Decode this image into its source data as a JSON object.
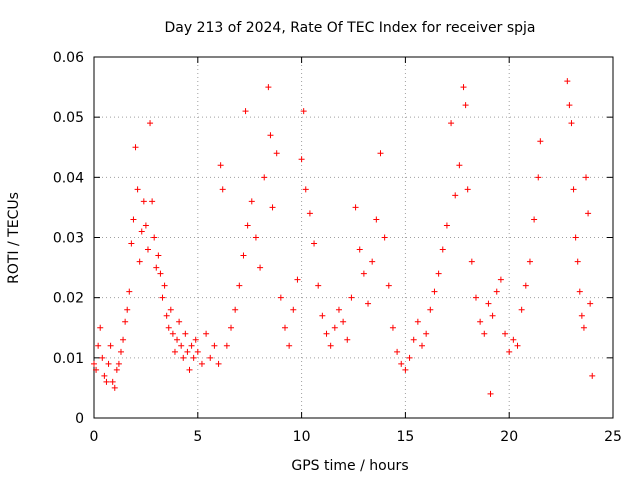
{
  "chart_data": {
    "type": "scatter",
    "title": "Day 213 of 2024, Rate Of TEC Index for receiver spja",
    "xlabel": "GPS time / hours",
    "ylabel": "ROTI / TECUs",
    "xlim": [
      0,
      25
    ],
    "ylim": [
      0,
      0.06
    ],
    "xticks": [
      0,
      5,
      10,
      15,
      20,
      25
    ],
    "yticks": [
      0,
      0.01,
      0.02,
      0.03,
      0.04,
      0.05,
      0.06
    ],
    "ytick_labels": [
      "0",
      "0.01",
      "0.02",
      "0.03",
      "0.04",
      "0.05",
      "0.06"
    ],
    "grid": true,
    "marker": "+",
    "color": "#ff0000",
    "series": [
      {
        "name": "spja",
        "points": [
          [
            0.0,
            0.009
          ],
          [
            0.1,
            0.008
          ],
          [
            0.2,
            0.012
          ],
          [
            0.3,
            0.015
          ],
          [
            0.4,
            0.01
          ],
          [
            0.5,
            0.007
          ],
          [
            0.6,
            0.006
          ],
          [
            0.7,
            0.009
          ],
          [
            0.8,
            0.012
          ],
          [
            0.9,
            0.006
          ],
          [
            1.0,
            0.005
          ],
          [
            1.1,
            0.008
          ],
          [
            1.2,
            0.009
          ],
          [
            1.3,
            0.011
          ],
          [
            1.4,
            0.013
          ],
          [
            1.5,
            0.016
          ],
          [
            1.6,
            0.018
          ],
          [
            1.7,
            0.021
          ],
          [
            1.8,
            0.029
          ],
          [
            1.9,
            0.033
          ],
          [
            2.0,
            0.045
          ],
          [
            2.1,
            0.038
          ],
          [
            2.2,
            0.026
          ],
          [
            2.3,
            0.031
          ],
          [
            2.4,
            0.036
          ],
          [
            2.5,
            0.032
          ],
          [
            2.6,
            0.028
          ],
          [
            2.7,
            0.049
          ],
          [
            2.8,
            0.036
          ],
          [
            2.9,
            0.03
          ],
          [
            3.0,
            0.025
          ],
          [
            3.1,
            0.027
          ],
          [
            3.2,
            0.024
          ],
          [
            3.3,
            0.02
          ],
          [
            3.4,
            0.022
          ],
          [
            3.5,
            0.017
          ],
          [
            3.6,
            0.015
          ],
          [
            3.7,
            0.018
          ],
          [
            3.8,
            0.014
          ],
          [
            3.9,
            0.011
          ],
          [
            4.0,
            0.013
          ],
          [
            4.1,
            0.016
          ],
          [
            4.2,
            0.012
          ],
          [
            4.3,
            0.01
          ],
          [
            4.4,
            0.014
          ],
          [
            4.5,
            0.011
          ],
          [
            4.6,
            0.008
          ],
          [
            4.7,
            0.012
          ],
          [
            4.8,
            0.01
          ],
          [
            4.9,
            0.013
          ],
          [
            5.0,
            0.011
          ],
          [
            5.2,
            0.009
          ],
          [
            5.4,
            0.014
          ],
          [
            5.6,
            0.01
          ],
          [
            5.8,
            0.012
          ],
          [
            6.0,
            0.009
          ],
          [
            6.1,
            0.042
          ],
          [
            6.2,
            0.038
          ],
          [
            6.4,
            0.012
          ],
          [
            6.6,
            0.015
          ],
          [
            6.8,
            0.018
          ],
          [
            7.0,
            0.022
          ],
          [
            7.2,
            0.027
          ],
          [
            7.3,
            0.051
          ],
          [
            7.4,
            0.032
          ],
          [
            7.6,
            0.036
          ],
          [
            7.8,
            0.03
          ],
          [
            8.0,
            0.025
          ],
          [
            8.2,
            0.04
          ],
          [
            8.4,
            0.055
          ],
          [
            8.5,
            0.047
          ],
          [
            8.6,
            0.035
          ],
          [
            8.8,
            0.044
          ],
          [
            9.0,
            0.02
          ],
          [
            9.2,
            0.015
          ],
          [
            9.4,
            0.012
          ],
          [
            9.6,
            0.018
          ],
          [
            9.8,
            0.023
          ],
          [
            10.0,
            0.043
          ],
          [
            10.1,
            0.051
          ],
          [
            10.2,
            0.038
          ],
          [
            10.4,
            0.034
          ],
          [
            10.6,
            0.029
          ],
          [
            10.8,
            0.022
          ],
          [
            11.0,
            0.017
          ],
          [
            11.2,
            0.014
          ],
          [
            11.4,
            0.012
          ],
          [
            11.6,
            0.015
          ],
          [
            11.8,
            0.018
          ],
          [
            12.0,
            0.016
          ],
          [
            12.2,
            0.013
          ],
          [
            12.4,
            0.02
          ],
          [
            12.6,
            0.035
          ],
          [
            12.8,
            0.028
          ],
          [
            13.0,
            0.024
          ],
          [
            13.2,
            0.019
          ],
          [
            13.4,
            0.026
          ],
          [
            13.6,
            0.033
          ],
          [
            13.8,
            0.044
          ],
          [
            14.0,
            0.03
          ],
          [
            14.2,
            0.022
          ],
          [
            14.4,
            0.015
          ],
          [
            14.6,
            0.011
          ],
          [
            14.8,
            0.009
          ],
          [
            15.0,
            0.008
          ],
          [
            15.2,
            0.01
          ],
          [
            15.4,
            0.013
          ],
          [
            15.6,
            0.016
          ],
          [
            15.8,
            0.012
          ],
          [
            16.0,
            0.014
          ],
          [
            16.2,
            0.018
          ],
          [
            16.4,
            0.021
          ],
          [
            16.6,
            0.024
          ],
          [
            16.8,
            0.028
          ],
          [
            17.0,
            0.032
          ],
          [
            17.2,
            0.049
          ],
          [
            17.4,
            0.037
          ],
          [
            17.6,
            0.042
          ],
          [
            17.8,
            0.055
          ],
          [
            17.9,
            0.052
          ],
          [
            18.0,
            0.038
          ],
          [
            18.2,
            0.026
          ],
          [
            18.4,
            0.02
          ],
          [
            18.6,
            0.016
          ],
          [
            18.8,
            0.014
          ],
          [
            19.0,
            0.019
          ],
          [
            19.1,
            0.004
          ],
          [
            19.2,
            0.017
          ],
          [
            19.4,
            0.021
          ],
          [
            19.6,
            0.023
          ],
          [
            19.8,
            0.014
          ],
          [
            20.0,
            0.011
          ],
          [
            20.2,
            0.013
          ],
          [
            20.4,
            0.012
          ],
          [
            20.6,
            0.018
          ],
          [
            20.8,
            0.022
          ],
          [
            21.0,
            0.026
          ],
          [
            21.2,
            0.033
          ],
          [
            21.4,
            0.04
          ],
          [
            21.5,
            0.046
          ],
          [
            22.8,
            0.056
          ],
          [
            22.9,
            0.052
          ],
          [
            23.0,
            0.049
          ],
          [
            23.1,
            0.038
          ],
          [
            23.2,
            0.03
          ],
          [
            23.3,
            0.026
          ],
          [
            23.4,
            0.021
          ],
          [
            23.5,
            0.017
          ],
          [
            23.6,
            0.015
          ],
          [
            23.7,
            0.04
          ],
          [
            23.8,
            0.034
          ],
          [
            23.9,
            0.019
          ],
          [
            24.0,
            0.007
          ]
        ]
      }
    ]
  }
}
